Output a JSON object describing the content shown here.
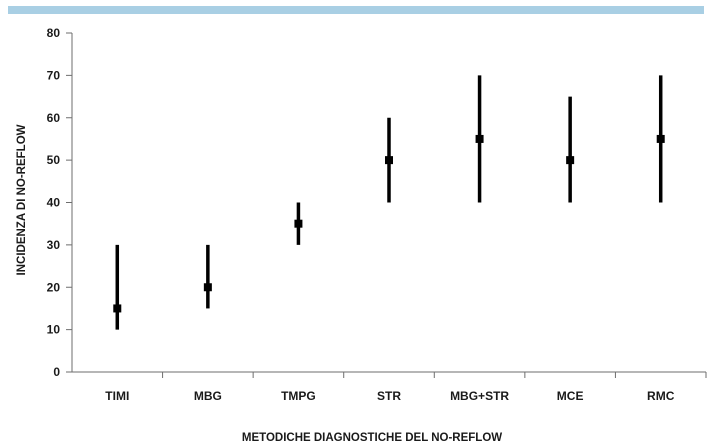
{
  "colors": {
    "top_bar": "#a9cfe4",
    "axis": "#6e6e6e",
    "marks": "#000000"
  },
  "chart_data": {
    "type": "range",
    "title": "",
    "xlabel": "METODICHE DIAGNOSTICHE DEL NO-REFLOW",
    "ylabel": "INCIDENZA DI NO-REFLOW",
    "ylim": [
      0,
      80
    ],
    "yticks": [
      0,
      10,
      20,
      30,
      40,
      50,
      60,
      70,
      80
    ],
    "grid": false,
    "categories": [
      "TIMI",
      "MBG",
      "TMPG",
      "STR",
      "MBG+STR",
      "MCE",
      "RMC"
    ],
    "series": [
      {
        "point": [
          15,
          20,
          35,
          50,
          55,
          50,
          55
        ],
        "low": [
          10,
          15,
          30,
          40,
          40,
          40,
          40
        ],
        "high": [
          30,
          30,
          40,
          60,
          70,
          65,
          70
        ]
      }
    ]
  }
}
